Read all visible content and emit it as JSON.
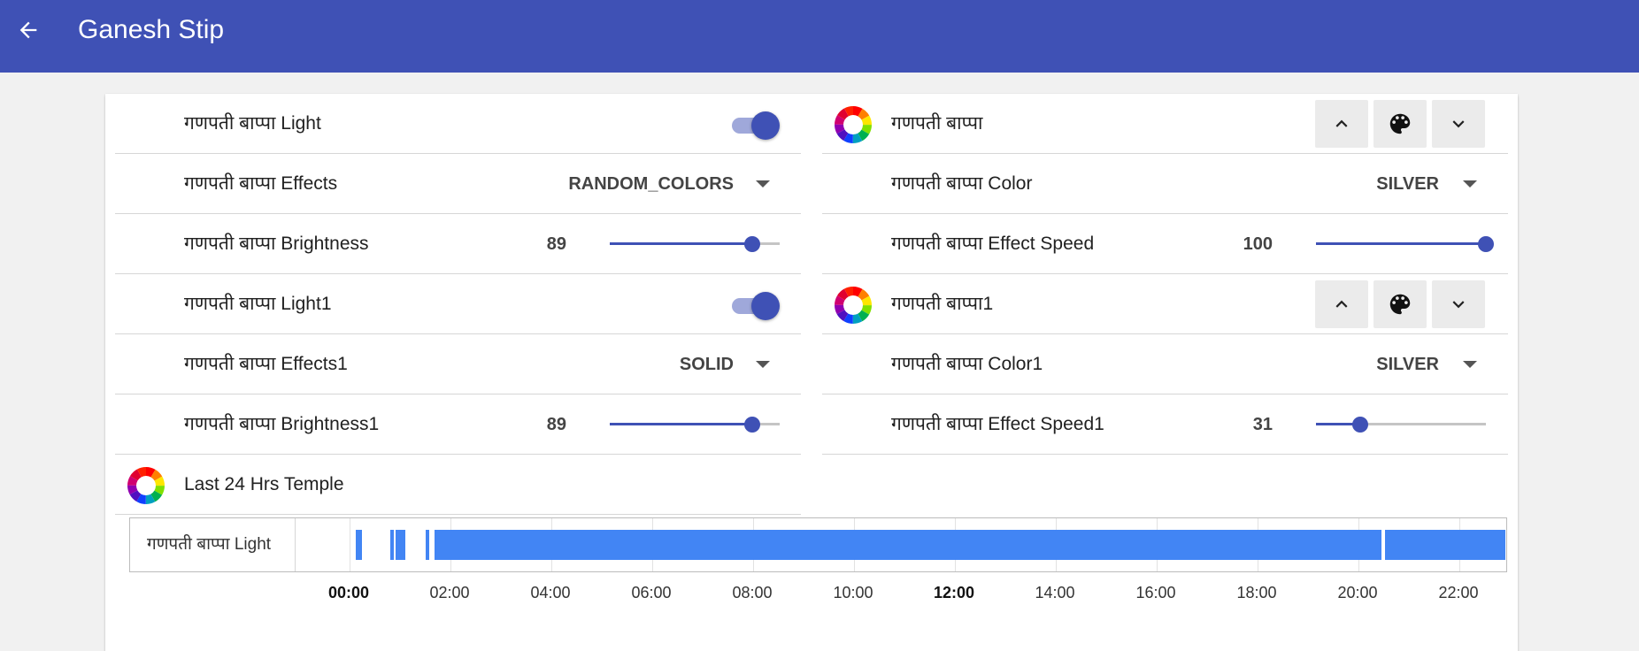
{
  "header": {
    "title": "Ganesh Stip",
    "back_icon": "arrow-back-icon",
    "background": "#3f51b5"
  },
  "left": {
    "light": {
      "label": "गणपती बाप्पा Light",
      "state": "on"
    },
    "effects": {
      "label": "गणपती बाप्पा Effects",
      "value": "RANDOM_COLORS"
    },
    "brightness": {
      "label": "गणपती बाप्पा Brightness",
      "value": "89",
      "level_percent": 84
    },
    "light1": {
      "label": "गणपती बाप्पा Light1",
      "state": "on"
    },
    "effects1": {
      "label": "गणपती बाप्पा Effects1",
      "value": "SOLID"
    },
    "brightness1": {
      "label": "गणपती बाप्पा Brightness1",
      "value": "89",
      "level_percent": 84
    },
    "temple": {
      "label": "Last 24 Hrs Temple"
    }
  },
  "right": {
    "cover": {
      "label": "गणपती बाप्पा",
      "buttons": [
        "chevron-up-icon",
        "palette-icon",
        "chevron-down-icon"
      ]
    },
    "color": {
      "label": "गणपती बाप्पा Color",
      "value": "SILVER"
    },
    "effect_speed": {
      "label": "गणपती बाप्पा Effect Speed",
      "value": "100",
      "level_percent": 100
    },
    "cover1": {
      "label": "गणपती बाप्पा1",
      "buttons": [
        "chevron-up-icon",
        "palette-icon",
        "chevron-down-icon"
      ]
    },
    "color1": {
      "label": "गणपती बाप्पा Color1",
      "value": "SILVER"
    },
    "effect_speed1": {
      "label": "गणपती बाप्पा Effect Speed1",
      "value": "31",
      "level_percent": 26
    }
  },
  "timeline": {
    "entity_label": "गणपती बाप्पा Light",
    "bar_color": "#4285f4",
    "on_periods_hours": [
      [
        0.12,
        0.25
      ],
      [
        0.8,
        0.87
      ],
      [
        0.92,
        1.1
      ],
      [
        1.5,
        1.58
      ],
      [
        1.68,
        20.45
      ],
      [
        20.52,
        24.0
      ]
    ],
    "ticks": [
      "00:00",
      "02:00",
      "04:00",
      "06:00",
      "08:00",
      "10:00",
      "12:00",
      "14:00",
      "16:00",
      "18:00",
      "20:00",
      "22:00"
    ],
    "bold_ticks": [
      "00:00",
      "12:00"
    ]
  },
  "icon_names": {
    "rgb_light": "rgb-light-icon",
    "color_wheel": "color-wheel-icon"
  },
  "accent_color": "#3f51b5"
}
